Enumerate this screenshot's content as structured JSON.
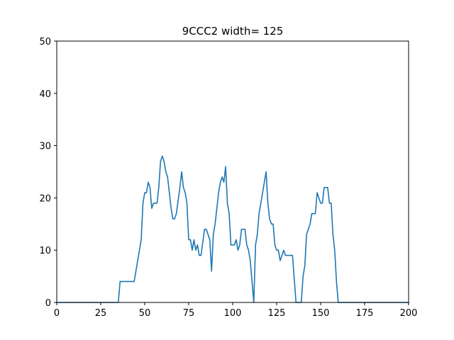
{
  "chart_data": {
    "type": "line",
    "title": "9CCC2 width= 125",
    "xlabel": "",
    "ylabel": "",
    "xlim": [
      0,
      200
    ],
    "ylim": [
      0,
      50
    ],
    "xticks": [
      0,
      25,
      50,
      75,
      100,
      125,
      150,
      175,
      200
    ],
    "yticks": [
      0,
      10,
      20,
      30,
      40,
      50
    ],
    "grid": false,
    "line_color": "#1f77b4",
    "series": [
      {
        "x": [
          0,
          35,
          36,
          44,
          48,
          49,
          50,
          51,
          52,
          53,
          54,
          55,
          57,
          58,
          59,
          60,
          61,
          62,
          63,
          64,
          65,
          66,
          67,
          68,
          70,
          71,
          72,
          73,
          74,
          75,
          76,
          77,
          78,
          79,
          80,
          81,
          82,
          84,
          85,
          87,
          88,
          89,
          90,
          91,
          92,
          93,
          94,
          95,
          96,
          97,
          98,
          99,
          100,
          101,
          102,
          103,
          104,
          105,
          106,
          107,
          108,
          109,
          110,
          111,
          112,
          113,
          114,
          115,
          116,
          117,
          118,
          119,
          120,
          121,
          122,
          123,
          124,
          125,
          126,
          127,
          128,
          129,
          130,
          132,
          134,
          136,
          137,
          138,
          139,
          140,
          141,
          142,
          143,
          144,
          145,
          146,
          147,
          148,
          149,
          150,
          151,
          152,
          153,
          154,
          155,
          156,
          157,
          158,
          159,
          160,
          200
        ],
        "y": [
          0,
          0,
          4,
          4,
          12,
          19,
          21,
          21,
          23,
          22,
          18,
          19,
          19,
          22,
          27,
          28,
          27,
          25,
          24,
          21,
          18,
          16,
          16,
          17,
          22,
          25,
          22,
          21,
          19,
          12,
          12,
          10,
          12,
          10,
          11,
          9,
          9,
          14,
          14,
          12,
          6,
          13,
          15,
          18,
          21,
          23,
          24,
          23,
          26,
          19,
          17,
          11,
          11,
          11,
          12,
          10,
          11,
          14,
          14,
          14,
          11,
          10,
          8,
          4,
          0,
          11,
          13,
          17,
          19,
          21,
          23,
          25,
          19,
          16,
          15,
          15,
          11,
          10,
          10,
          8,
          9,
          10,
          9,
          9,
          9,
          0,
          0,
          0,
          0,
          5,
          7,
          13,
          14,
          15,
          17,
          17,
          17,
          21,
          20,
          19,
          19,
          22,
          22,
          22,
          19,
          19,
          13,
          10,
          4,
          0,
          0
        ]
      }
    ]
  }
}
